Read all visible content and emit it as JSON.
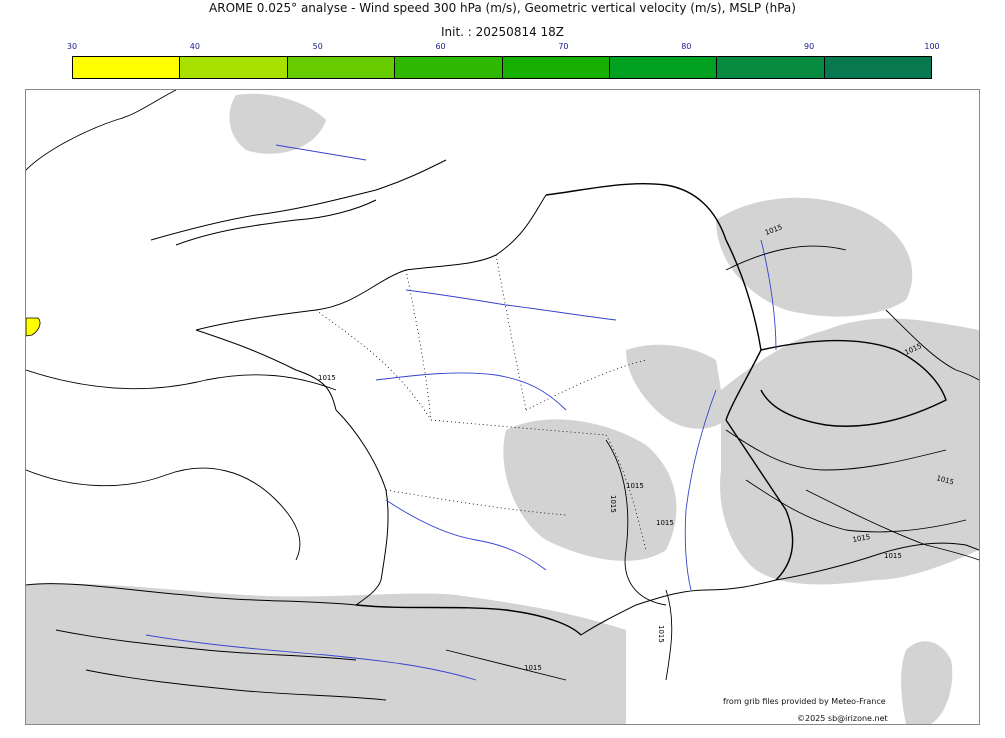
{
  "title": "AROME 0.025° analyse - Wind speed 300 hPa (m/s), Geometric vertical velocity (m/s), MSLP (hPa)",
  "init": "Init. : 20250814 18Z",
  "colorbar": {
    "ticks": [
      "30",
      "40",
      "50",
      "60",
      "70",
      "80",
      "90",
      "100"
    ],
    "colors": [
      "#ffff00",
      "#a8e000",
      "#66cc00",
      "#2eb800",
      "#18b000",
      "#00a020",
      "#058a40",
      "#087850"
    ]
  },
  "contour_labels": [
    "1015",
    "1015",
    "1015",
    "1015",
    "1015",
    "1015",
    "1015",
    "1015",
    "1015",
    "1015",
    "1015"
  ],
  "credit_source": "from grib files provided by Meteo-France",
  "credit_copyright": "©2025 sb@irizone.net"
}
